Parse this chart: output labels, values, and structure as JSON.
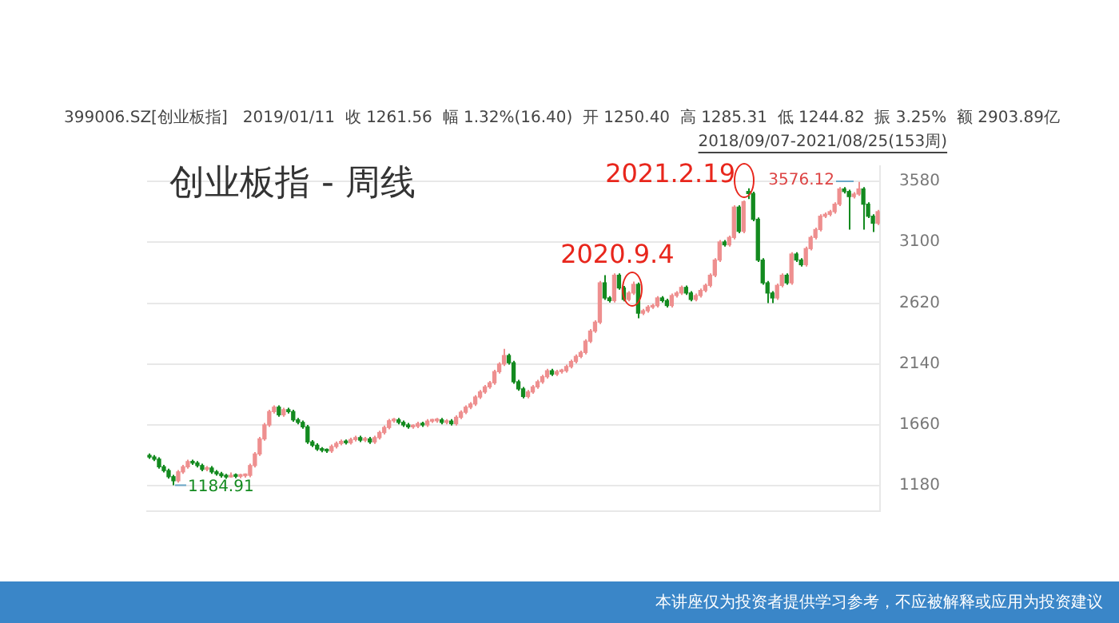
{
  "chart_data": {
    "type": "candlestick",
    "title": "创业板指 - 周线",
    "subtitle": "399006.SZ[创业板指]   2019/01/11  收 1261.56  幅 1.32%(16.40)  开 1250.40  高 1285.31  低 1244.82  振 3.25%  额 2903.89亿",
    "categories": [
      null,
      null,
      null,
      null,
      null,
      null,
      null,
      null,
      null,
      null,
      null,
      null,
      null,
      null,
      null,
      null,
      null,
      null,
      null,
      null,
      null,
      null,
      null,
      null,
      null,
      null,
      null,
      null,
      null,
      null,
      null,
      null,
      null,
      null,
      null,
      null,
      null,
      null,
      null,
      null,
      null,
      null,
      null,
      null,
      null,
      null,
      null,
      null,
      null,
      null,
      null,
      null,
      null,
      null,
      null,
      null,
      null,
      null,
      null,
      null,
      null,
      null,
      null,
      null,
      null,
      null,
      null,
      null,
      null,
      null,
      null,
      null,
      null,
      null,
      null,
      null,
      null,
      null,
      null,
      null,
      null,
      null,
      null,
      null,
      null,
      null,
      null,
      null,
      null,
      null,
      null,
      null,
      null,
      null,
      null,
      null,
      null,
      null,
      null,
      null,
      null,
      null,
      null,
      null,
      null,
      null,
      null,
      null,
      null,
      null,
      null,
      null,
      null,
      null,
      null,
      null,
      null,
      null,
      null,
      null,
      null,
      null,
      null,
      null,
      null,
      null,
      null,
      null,
      null,
      null,
      null,
      null,
      null,
      null,
      null,
      null,
      null,
      null,
      null,
      null,
      null,
      null,
      null,
      null,
      null,
      null,
      null,
      null,
      null,
      null,
      null,
      null,
      null
    ],
    "ohlc": [
      [
        1420,
        1435,
        1392,
        1407
      ],
      [
        1407,
        1422,
        1375,
        1390
      ],
      [
        1390,
        1405,
        1315,
        1330
      ],
      [
        1330,
        1345,
        1285,
        1300
      ],
      [
        1300,
        1315,
        1237,
        1252
      ],
      [
        1252,
        1267,
        1184.91,
        1220
      ],
      [
        1220,
        1305,
        1205,
        1290
      ],
      [
        1290,
        1345,
        1275,
        1330
      ],
      [
        1330,
        1386,
        1315,
        1371
      ],
      [
        1371,
        1386,
        1345,
        1360
      ],
      [
        1360,
        1375,
        1325,
        1340
      ],
      [
        1340,
        1355,
        1295,
        1310
      ],
      [
        1310,
        1335,
        1295,
        1320
      ],
      [
        1320,
        1335,
        1275,
        1290
      ],
      [
        1290,
        1305,
        1260,
        1275
      ],
      [
        1275,
        1290,
        1245,
        1260
      ],
      [
        1260,
        1275,
        1235,
        1250
      ],
      [
        1250.4,
        1285.31,
        1244.82,
        1261.56
      ],
      [
        1261.56,
        1277,
        1240,
        1255
      ],
      [
        1255,
        1275,
        1240,
        1260
      ],
      [
        1260,
        1278,
        1245,
        1263
      ],
      [
        1263,
        1355,
        1248,
        1340
      ],
      [
        1340,
        1446,
        1325,
        1431
      ],
      [
        1431,
        1565,
        1416,
        1550
      ],
      [
        1550,
        1675,
        1535,
        1660
      ],
      [
        1660,
        1780,
        1645,
        1765
      ],
      [
        1765,
        1815,
        1750,
        1800
      ],
      [
        1800,
        1815,
        1725,
        1740
      ],
      [
        1740,
        1795,
        1725,
        1780
      ],
      [
        1780,
        1795,
        1750,
        1765
      ],
      [
        1765,
        1780,
        1685,
        1700
      ],
      [
        1700,
        1715,
        1665,
        1680
      ],
      [
        1680,
        1695,
        1630,
        1645
      ],
      [
        1645,
        1660,
        1511,
        1526
      ],
      [
        1526,
        1541,
        1485,
        1500
      ],
      [
        1500,
        1515,
        1455,
        1470
      ],
      [
        1470,
        1485,
        1445,
        1460
      ],
      [
        1460,
        1475,
        1440,
        1455
      ],
      [
        1455,
        1505,
        1440,
        1490
      ],
      [
        1490,
        1529,
        1475,
        1514
      ],
      [
        1514,
        1545,
        1499,
        1530
      ],
      [
        1530,
        1545,
        1505,
        1520
      ],
      [
        1520,
        1560,
        1505,
        1545
      ],
      [
        1545,
        1575,
        1530,
        1560
      ],
      [
        1560,
        1575,
        1525,
        1540
      ],
      [
        1540,
        1565,
        1525,
        1550
      ],
      [
        1550,
        1565,
        1511,
        1526
      ],
      [
        1526,
        1575,
        1511,
        1560
      ],
      [
        1560,
        1615,
        1545,
        1600
      ],
      [
        1600,
        1655,
        1585,
        1640
      ],
      [
        1640,
        1708,
        1625,
        1693
      ],
      [
        1693,
        1715,
        1678,
        1700
      ],
      [
        1700,
        1715,
        1665,
        1680
      ],
      [
        1680,
        1695,
        1645,
        1660
      ],
      [
        1660,
        1675,
        1630,
        1645
      ],
      [
        1645,
        1665,
        1630,
        1650
      ],
      [
        1650,
        1685,
        1635,
        1670
      ],
      [
        1670,
        1685,
        1645,
        1660
      ],
      [
        1660,
        1705,
        1645,
        1690
      ],
      [
        1690,
        1708,
        1675,
        1693
      ],
      [
        1693,
        1715,
        1678,
        1700
      ],
      [
        1700,
        1715,
        1665,
        1680
      ],
      [
        1680,
        1705,
        1665,
        1690
      ],
      [
        1690,
        1705,
        1655,
        1670
      ],
      [
        1670,
        1735,
        1655,
        1720
      ],
      [
        1720,
        1775,
        1705,
        1760
      ],
      [
        1760,
        1815,
        1745,
        1800
      ],
      [
        1800,
        1840,
        1785,
        1825
      ],
      [
        1825,
        1895,
        1810,
        1880
      ],
      [
        1880,
        1935,
        1865,
        1920
      ],
      [
        1920,
        1975,
        1905,
        1960
      ],
      [
        1960,
        2007,
        1945,
        1992
      ],
      [
        1992,
        2095,
        1977,
        2080
      ],
      [
        2080,
        2155,
        2065,
        2140
      ],
      [
        2140,
        2260,
        2125,
        2207
      ],
      [
        2207,
        2222,
        2135,
        2150
      ],
      [
        2150,
        2165,
        1985,
        2000
      ],
      [
        2000,
        2015,
        1929,
        1944
      ],
      [
        1944,
        1959,
        1869,
        1884
      ],
      [
        1884,
        1935,
        1869,
        1920
      ],
      [
        1920,
        1975,
        1905,
        1960
      ],
      [
        1960,
        2015,
        1945,
        2000
      ],
      [
        2000,
        2055,
        1985,
        2040
      ],
      [
        2040,
        2102,
        2025,
        2087
      ],
      [
        2087,
        2102,
        2045,
        2060
      ],
      [
        2060,
        2095,
        2045,
        2080
      ],
      [
        2080,
        2102,
        2065,
        2087
      ],
      [
        2087,
        2135,
        2072,
        2120
      ],
      [
        2120,
        2175,
        2105,
        2160
      ],
      [
        2160,
        2215,
        2145,
        2200
      ],
      [
        2200,
        2246,
        2185,
        2231
      ],
      [
        2231,
        2335,
        2216,
        2320
      ],
      [
        2320,
        2415,
        2305,
        2400
      ],
      [
        2400,
        2485,
        2385,
        2470
      ],
      [
        2470,
        2795,
        2455,
        2780
      ],
      [
        2780,
        2840,
        2646,
        2661
      ],
      [
        2661,
        2676,
        2625,
        2640
      ],
      [
        2640,
        2855,
        2625,
        2840
      ],
      [
        2840,
        2855,
        2725,
        2740
      ],
      [
        2740,
        2755,
        2634,
        2649
      ],
      [
        2649,
        2715,
        2634,
        2700
      ],
      [
        2700,
        2790,
        2685,
        2768
      ],
      [
        2768,
        2783,
        2500,
        2541
      ],
      [
        2541,
        2575,
        2526,
        2560
      ],
      [
        2560,
        2604,
        2545,
        2589
      ],
      [
        2589,
        2615,
        2574,
        2600
      ],
      [
        2600,
        2676,
        2585,
        2661
      ],
      [
        2661,
        2676,
        2625,
        2640
      ],
      [
        2640,
        2655,
        2586,
        2601
      ],
      [
        2601,
        2695,
        2586,
        2680
      ],
      [
        2680,
        2715,
        2665,
        2700
      ],
      [
        2700,
        2759,
        2685,
        2744
      ],
      [
        2744,
        2759,
        2685,
        2700
      ],
      [
        2700,
        2715,
        2634,
        2649
      ],
      [
        2649,
        2695,
        2634,
        2680
      ],
      [
        2680,
        2735,
        2665,
        2720
      ],
      [
        2720,
        2775,
        2705,
        2760
      ],
      [
        2760,
        2855,
        2745,
        2840
      ],
      [
        2840,
        2975,
        2825,
        2960
      ],
      [
        2960,
        3117,
        2945,
        3102
      ],
      [
        3102,
        3117,
        3065,
        3080
      ],
      [
        3080,
        3153,
        3065,
        3138
      ],
      [
        3138,
        3392,
        3123,
        3377
      ],
      [
        3377,
        3392,
        3171,
        3186
      ],
      [
        3186,
        3430,
        3171,
        3420
      ],
      [
        3500,
        3525,
        3440,
        3484
      ],
      [
        3484,
        3499,
        3266,
        3281
      ],
      [
        3281,
        3296,
        2944,
        2959
      ],
      [
        2959,
        2974,
        2765,
        2780
      ],
      [
        2780,
        2795,
        2620,
        2700
      ],
      [
        2700,
        2715,
        2620,
        2661
      ],
      [
        2661,
        2775,
        2646,
        2760
      ],
      [
        2760,
        2855,
        2745,
        2840
      ],
      [
        2840,
        2855,
        2765,
        2780
      ],
      [
        2780,
        3022,
        2765,
        3007
      ],
      [
        3007,
        3022,
        2945,
        2960
      ],
      [
        2960,
        2975,
        2908,
        2923
      ],
      [
        2923,
        3065,
        2908,
        3050
      ],
      [
        3050,
        3153,
        3035,
        3138
      ],
      [
        3138,
        3215,
        3123,
        3200
      ],
      [
        3200,
        3320,
        3185,
        3305
      ],
      [
        3305,
        3335,
        3290,
        3320
      ],
      [
        3320,
        3356,
        3305,
        3341
      ],
      [
        3341,
        3415,
        3326,
        3400
      ],
      [
        3400,
        3535,
        3385,
        3520
      ],
      [
        3520,
        3535,
        3485,
        3500
      ],
      [
        3500,
        3515,
        3200,
        3460
      ],
      [
        3460,
        3495,
        3445,
        3480
      ],
      [
        3480,
        3576.12,
        3465,
        3520
      ],
      [
        3520,
        3535,
        3200,
        3400
      ],
      [
        3400,
        3415,
        3290,
        3305
      ],
      [
        3305,
        3320,
        3180,
        3250
      ],
      [
        3250,
        3356,
        3235,
        3341
      ]
    ],
    "colors": [
      "#138a1f",
      "#138a1f",
      "#138a1f",
      "#138a1f",
      "#138a1f",
      "#138a1f",
      "#ee8f8f",
      "#ee8f8f",
      "#ee8f8f",
      "#138a1f",
      "#138a1f",
      "#138a1f",
      "#ee8f8f",
      "#138a1f",
      "#138a1f",
      "#138a1f",
      "#138a1f",
      "#ee8f8f",
      "#138a1f",
      "#ee8f8f",
      "#ee8f8f",
      "#ee8f8f",
      "#ee8f8f",
      "#ee8f8f",
      "#ee8f8f",
      "#ee8f8f",
      "#ee8f8f",
      "#138a1f",
      "#ee8f8f",
      "#138a1f",
      "#138a1f",
      "#138a1f",
      "#138a1f",
      "#138a1f",
      "#138a1f",
      "#138a1f",
      "#138a1f",
      "#138a1f",
      "#ee8f8f",
      "#ee8f8f",
      "#ee8f8f",
      "#138a1f",
      "#ee8f8f",
      "#ee8f8f",
      "#138a1f",
      "#ee8f8f",
      "#138a1f",
      "#ee8f8f",
      "#ee8f8f",
      "#ee8f8f",
      "#ee8f8f",
      "#ee8f8f",
      "#138a1f",
      "#138a1f",
      "#138a1f",
      "#ee8f8f",
      "#ee8f8f",
      "#138a1f",
      "#ee8f8f",
      "#ee8f8f",
      "#ee8f8f",
      "#138a1f",
      "#ee8f8f",
      "#138a1f",
      "#ee8f8f",
      "#ee8f8f",
      "#ee8f8f",
      "#ee8f8f",
      "#ee8f8f",
      "#ee8f8f",
      "#ee8f8f",
      "#ee8f8f",
      "#ee8f8f",
      "#ee8f8f",
      "#ee8f8f",
      "#138a1f",
      "#138a1f",
      "#138a1f",
      "#138a1f",
      "#ee8f8f",
      "#ee8f8f",
      "#ee8f8f",
      "#ee8f8f",
      "#ee8f8f",
      "#138a1f",
      "#ee8f8f",
      "#ee8f8f",
      "#ee8f8f",
      "#ee8f8f",
      "#ee8f8f",
      "#ee8f8f",
      "#ee8f8f",
      "#ee8f8f",
      "#ee8f8f",
      "#ee8f8f",
      "#138a1f",
      "#138a1f",
      "#ee8f8f",
      "#138a1f",
      "#138a1f",
      "#ee8f8f",
      "#ee8f8f",
      "#138a1f",
      "#ee8f8f",
      "#ee8f8f",
      "#ee8f8f",
      "#ee8f8f",
      "#138a1f",
      "#138a1f",
      "#ee8f8f",
      "#ee8f8f",
      "#ee8f8f",
      "#138a1f",
      "#138a1f",
      "#ee8f8f",
      "#ee8f8f",
      "#ee8f8f",
      "#ee8f8f",
      "#ee8f8f",
      "#ee8f8f",
      "#138a1f",
      "#ee8f8f",
      "#ee8f8f",
      "#138a1f",
      "#ee8f8f",
      "#138a1f",
      "#138a1f",
      "#138a1f",
      "#138a1f",
      "#138a1f",
      "#138a1f",
      "#ee8f8f",
      "#ee8f8f",
      "#138a1f",
      "#ee8f8f",
      "#138a1f",
      "#138a1f",
      "#ee8f8f",
      "#ee8f8f",
      "#ee8f8f",
      "#ee8f8f",
      "#ee8f8f",
      "#ee8f8f",
      "#ee8f8f",
      "#ee8f8f",
      "#138a1f",
      "#138a1f",
      "#ee8f8f",
      "#ee8f8f",
      "#138a1f",
      "#138a1f",
      "#138a1f",
      "#ee8f8f"
    ],
    "ylim": [
      980,
      3700
    ],
    "yticks": [
      1180,
      1660,
      2140,
      2620,
      3100,
      3580
    ],
    "grid": "y",
    "tick_labels": "y",
    "annotations": [
      {
        "text": "2020.9.4",
        "y": 2790
      },
      "2021.2.19",
      {
        "text": "1184.91",
        "y": 1184.91
      },
      "3576.12",
      "2018/09/07-2021/08/25(153周)",
      "本讲座仅为投资者提供学习参考，不应被解释或应用为投资建议"
    ]
  }
}
